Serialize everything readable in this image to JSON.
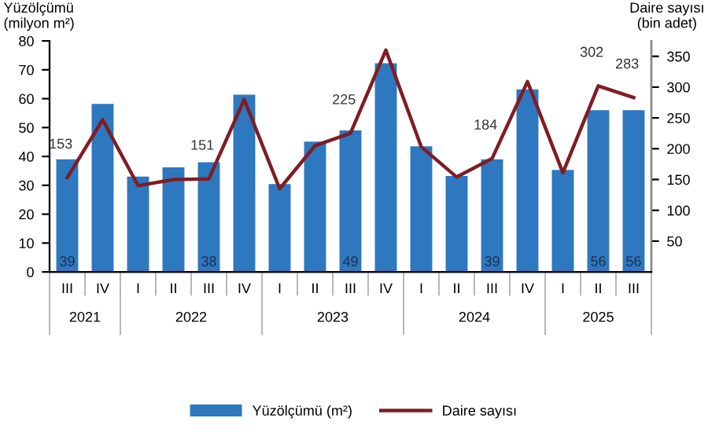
{
  "chart_data": {
    "type": "bar",
    "ylabel": "Yüzölçümü\n(milyon m²)",
    "y2label": "Daire sayısı\n(bin adet)",
    "categories": [
      "III",
      "IV",
      "I",
      "II",
      "III",
      "IV",
      "I",
      "II",
      "III",
      "IV",
      "I",
      "II",
      "III",
      "IV",
      "I",
      "II",
      "III"
    ],
    "annotations": [
      "2021",
      "2022",
      "2023",
      "2024",
      "2025"
    ],
    "series": [
      {
        "name": "Yüzölçümü (m²)",
        "color": "#2e78bf",
        "values": [
          39,
          58.2,
          33,
          36.2,
          38,
          61.4,
          30.4,
          45.1,
          49,
          72.3,
          43.5,
          33.2,
          39,
          63.2,
          35.3,
          56,
          56
        ],
        "value_labels": [
          "39",
          null,
          null,
          null,
          "38",
          null,
          null,
          null,
          "49",
          null,
          null,
          null,
          "39",
          null,
          null,
          "56",
          "56"
        ]
      },
      {
        "name": "Daire sayısı",
        "type": "line",
        "axis": "y2",
        "color": "#7f1d24",
        "values": [
          153,
          247,
          140,
          150,
          151,
          280,
          135,
          205,
          225,
          360,
          203,
          154,
          184,
          309,
          161,
          302,
          283
        ],
        "value_labels": [
          "153",
          null,
          null,
          null,
          "151",
          null,
          null,
          null,
          "225",
          null,
          null,
          null,
          "184",
          null,
          null,
          "302",
          "283"
        ]
      }
    ],
    "ylim": [
      0,
      80
    ],
    "yticks": [
      0,
      10,
      20,
      30,
      40,
      50,
      60,
      70,
      80
    ],
    "y2lim": [
      0,
      375
    ],
    "y2ticks": [
      50,
      100,
      150,
      200,
      250,
      300,
      350
    ],
    "legend": "bottom",
    "grid": false,
    "marker": "none",
    "line_style": "solid"
  }
}
